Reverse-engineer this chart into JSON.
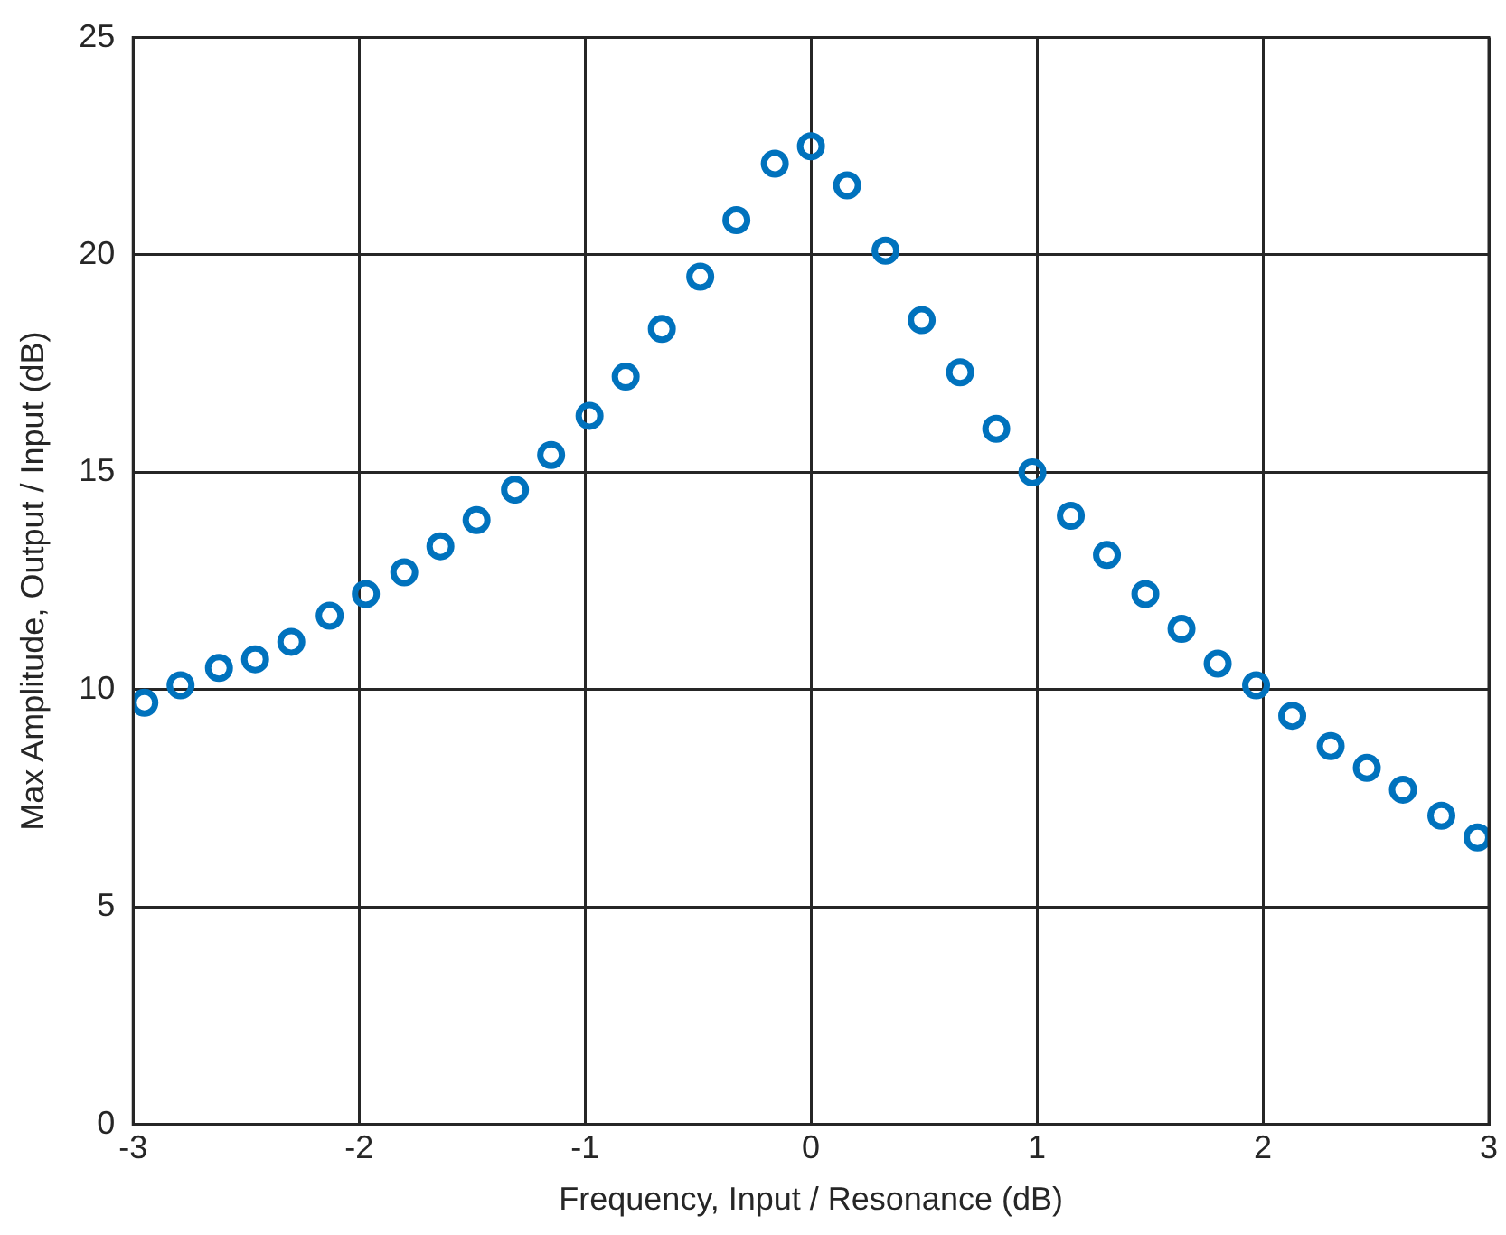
{
  "chart_data": {
    "type": "scatter",
    "xlabel": "Frequency, Input / Resonance (dB)",
    "ylabel": "Max Amplitude, Output / Input (dB)",
    "xlim": [
      -3,
      3
    ],
    "xticks": [
      -3,
      -2,
      -1,
      0,
      1,
      2,
      3
    ],
    "ylim": [
      0,
      25
    ],
    "yticks": [
      0,
      5,
      10,
      15,
      20,
      25
    ],
    "grid": true,
    "marker": "circle",
    "x": [
      -2.95,
      -2.79,
      -2.62,
      -2.46,
      -2.3,
      -2.13,
      -1.97,
      -1.8,
      -1.64,
      -1.48,
      -1.31,
      -1.15,
      -0.98,
      -0.82,
      -0.66,
      -0.49,
      -0.33,
      -0.16,
      0,
      0.16,
      0.33,
      0.49,
      0.66,
      0.82,
      0.98,
      1.15,
      1.31,
      1.48,
      1.64,
      1.8,
      1.97,
      2.13,
      2.3,
      2.46,
      2.62,
      2.79,
      2.95
    ],
    "series": [
      {
        "color": "#0072bd",
        "values": [
          9.7,
          10.1,
          10.5,
          10.7,
          11.1,
          11.7,
          12.2,
          12.7,
          13.3,
          13.9,
          14.6,
          15.4,
          16.3,
          17.2,
          18.3,
          19.5,
          20.8,
          22.1,
          22.5,
          21.6,
          20.1,
          18.5,
          17.3,
          16.0,
          15.0,
          14.0,
          13.1,
          12.2,
          11.4,
          10.6,
          10.1,
          9.4,
          8.7,
          8.2,
          7.7,
          7.1,
          6.6
        ]
      }
    ]
  }
}
